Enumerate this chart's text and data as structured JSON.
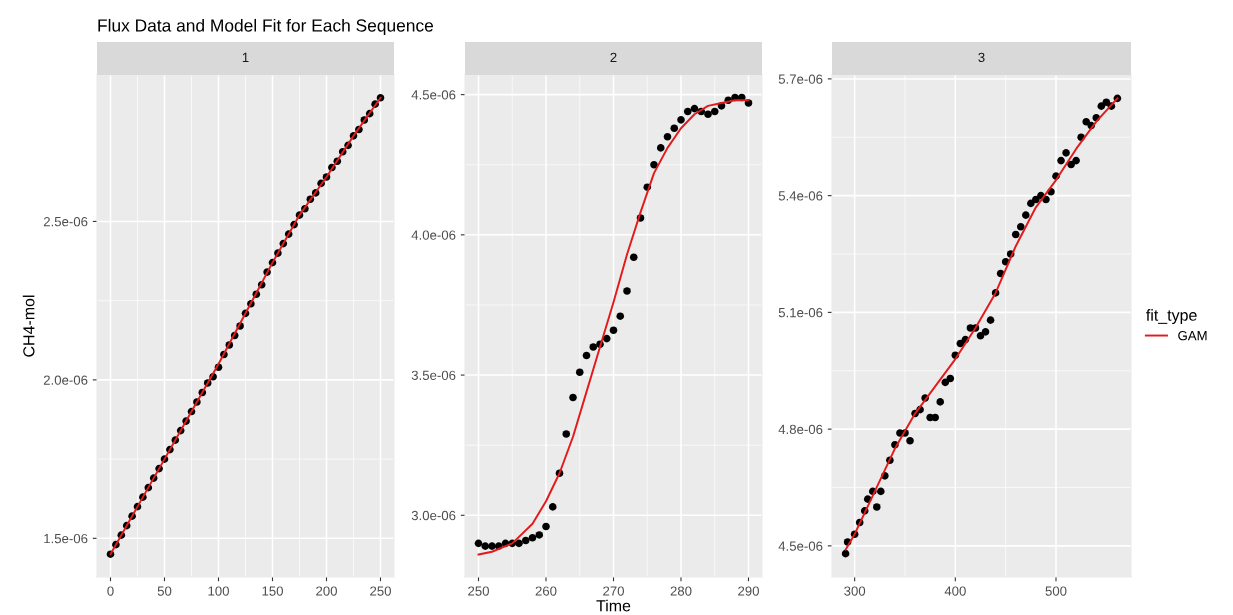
{
  "chart_data": [
    {
      "type": "scatter",
      "title": "Flux Data and Model Fit for Each Sequence",
      "subtitle": "1",
      "ylabel": "CH4-mol",
      "grid": true,
      "xlim": [
        -12.5,
        262.5
      ],
      "ylim": [
        1.378e-06,
        2.962e-06
      ],
      "xticks": [
        0,
        50,
        100,
        150,
        200,
        250
      ],
      "yticks": [
        {
          "value": 1.5e-06,
          "label": "1.5e-06"
        },
        {
          "value": 2e-06,
          "label": "2.0e-06"
        },
        {
          "value": 2.5e-06,
          "label": "2.5e-06"
        }
      ],
      "series": [
        {
          "marker": "circle",
          "color": "#000000",
          "x": [
            0,
            5,
            10,
            15,
            20,
            25,
            30,
            35,
            40,
            45,
            50,
            55,
            60,
            65,
            70,
            75,
            80,
            85,
            90,
            95,
            100,
            105,
            110,
            115,
            120,
            125,
            130,
            135,
            140,
            145,
            150,
            155,
            160,
            165,
            170,
            175,
            180,
            185,
            190,
            195,
            200,
            205,
            210,
            215,
            220,
            225,
            230,
            235,
            240,
            245,
            250
          ],
          "values": [
            1.45e-06,
            1.48e-06,
            1.51e-06,
            1.54e-06,
            1.57e-06,
            1.6e-06,
            1.63e-06,
            1.66e-06,
            1.69e-06,
            1.72e-06,
            1.75e-06,
            1.78e-06,
            1.81e-06,
            1.84e-06,
            1.87e-06,
            1.9e-06,
            1.93e-06,
            1.96e-06,
            1.99e-06,
            2.01e-06,
            2.04e-06,
            2.08e-06,
            2.11e-06,
            2.14e-06,
            2.17e-06,
            2.21e-06,
            2.24e-06,
            2.27e-06,
            2.3e-06,
            2.34e-06,
            2.37e-06,
            2.4e-06,
            2.43e-06,
            2.46e-06,
            2.49e-06,
            2.52e-06,
            2.54e-06,
            2.57e-06,
            2.59e-06,
            2.62e-06,
            2.64e-06,
            2.67e-06,
            2.69e-06,
            2.72e-06,
            2.74e-06,
            2.77e-06,
            2.79e-06,
            2.82e-06,
            2.84e-06,
            2.87e-06,
            2.89e-06
          ]
        },
        {
          "type": "line",
          "color": "#e31a1c",
          "x": [
            0,
            25,
            50,
            75,
            100,
            125,
            150,
            175,
            200,
            225,
            250
          ],
          "values": [
            1.45e-06,
            1.6e-06,
            1.75e-06,
            1.9e-06,
            2.05e-06,
            2.21e-06,
            2.37e-06,
            2.52e-06,
            2.64e-06,
            2.77e-06,
            2.89e-06
          ]
        }
      ]
    },
    {
      "type": "scatter",
      "subtitle": "2",
      "xlabel": "Time",
      "grid": true,
      "xlim": [
        248,
        292
      ],
      "ylim": [
        2.78e-06,
        4.57e-06
      ],
      "xticks": [
        250,
        260,
        270,
        280,
        290
      ],
      "yticks": [
        {
          "value": 3e-06,
          "label": "3.0e-06"
        },
        {
          "value": 3.5e-06,
          "label": "3.5e-06"
        },
        {
          "value": 4e-06,
          "label": "4.0e-06"
        },
        {
          "value": 4.5e-06,
          "label": "4.5e-06"
        }
      ],
      "series": [
        {
          "marker": "circle",
          "color": "#000000",
          "x": [
            250,
            251,
            252,
            253,
            254,
            255,
            256,
            257,
            258,
            259,
            260,
            261,
            262,
            263,
            264,
            265,
            266,
            267,
            268,
            269,
            270,
            271,
            272,
            273,
            274,
            275,
            276,
            277,
            278,
            279,
            280,
            281,
            282,
            283,
            284,
            285,
            286,
            287,
            288,
            289,
            290
          ],
          "values": [
            2.9e-06,
            2.89e-06,
            2.89e-06,
            2.89e-06,
            2.9e-06,
            2.9e-06,
            2.9e-06,
            2.91e-06,
            2.92e-06,
            2.93e-06,
            2.96e-06,
            3.03e-06,
            3.15e-06,
            3.29e-06,
            3.42e-06,
            3.51e-06,
            3.57e-06,
            3.6e-06,
            3.61e-06,
            3.63e-06,
            3.66e-06,
            3.71e-06,
            3.8e-06,
            3.92e-06,
            4.06e-06,
            4.17e-06,
            4.25e-06,
            4.31e-06,
            4.35e-06,
            4.38e-06,
            4.41e-06,
            4.44e-06,
            4.45e-06,
            4.44e-06,
            4.43e-06,
            4.44e-06,
            4.46e-06,
            4.48e-06,
            4.49e-06,
            4.49e-06,
            4.47e-06
          ]
        },
        {
          "type": "line",
          "color": "#e31a1c",
          "x": [
            250,
            252,
            255,
            258,
            260,
            262,
            264,
            266,
            268,
            270,
            272,
            274,
            276,
            278,
            280,
            282,
            284,
            286,
            288,
            290
          ],
          "values": [
            2.86e-06,
            2.87e-06,
            2.9e-06,
            2.97e-06,
            3.05e-06,
            3.15e-06,
            3.28e-06,
            3.44e-06,
            3.6e-06,
            3.76e-06,
            3.93e-06,
            4.08e-06,
            4.22e-06,
            4.31e-06,
            4.38e-06,
            4.43e-06,
            4.46e-06,
            4.47e-06,
            4.48e-06,
            4.48e-06
          ]
        }
      ]
    },
    {
      "type": "scatter",
      "subtitle": "3",
      "legend_title": "fit_type",
      "legend": "right",
      "grid": true,
      "xlim": [
        277.5,
        574.5
      ],
      "ylim": [
        4.42e-06,
        5.71e-06
      ],
      "xticks": [
        300,
        400,
        500
      ],
      "yticks": [
        {
          "value": 4.5e-06,
          "label": "4.5e-06"
        },
        {
          "value": 4.8e-06,
          "label": "4.8e-06"
        },
        {
          "value": 5.1e-06,
          "label": "5.1e-06"
        },
        {
          "value": 5.4e-06,
          "label": "5.4e-06"
        },
        {
          "value": 5.7e-06,
          "label": "5.7e-06"
        }
      ],
      "series": [
        {
          "marker": "circle",
          "color": "#000000",
          "x": [
            291,
            293,
            300,
            305,
            310,
            313,
            318,
            322,
            326,
            330,
            335,
            340,
            345,
            350,
            355,
            360,
            365,
            370,
            375,
            380,
            385,
            390,
            395,
            400,
            405,
            410,
            415,
            420,
            425,
            430,
            435,
            440,
            445,
            450,
            455,
            460,
            465,
            470,
            475,
            480,
            485,
            490,
            495,
            500,
            505,
            510,
            515,
            520,
            525,
            530,
            535,
            540,
            545,
            550,
            555,
            561
          ],
          "values": [
            4.48e-06,
            4.51e-06,
            4.53e-06,
            4.56e-06,
            4.59e-06,
            4.62e-06,
            4.64e-06,
            4.6e-06,
            4.64e-06,
            4.68e-06,
            4.72e-06,
            4.76e-06,
            4.79e-06,
            4.79e-06,
            4.77e-06,
            4.84e-06,
            4.85e-06,
            4.88e-06,
            4.83e-06,
            4.83e-06,
            4.87e-06,
            4.92e-06,
            4.93e-06,
            4.99e-06,
            5.02e-06,
            5.03e-06,
            5.06e-06,
            5.06e-06,
            5.04e-06,
            5.05e-06,
            5.08e-06,
            5.15e-06,
            5.2e-06,
            5.23e-06,
            5.25e-06,
            5.3e-06,
            5.32e-06,
            5.35e-06,
            5.38e-06,
            5.39e-06,
            5.4e-06,
            5.39e-06,
            5.41e-06,
            5.45e-06,
            5.49e-06,
            5.51e-06,
            5.48e-06,
            5.49e-06,
            5.55e-06,
            5.59e-06,
            5.58e-06,
            5.6e-06,
            5.63e-06,
            5.64e-06,
            5.63e-06,
            5.65e-06
          ]
        },
        {
          "type": "line",
          "name": "GAM",
          "color": "#e31a1c",
          "x": [
            291,
            300,
            320,
            340,
            360,
            380,
            400,
            420,
            440,
            460,
            480,
            500,
            520,
            540,
            561
          ],
          "values": [
            4.49e-06,
            4.53e-06,
            4.64e-06,
            4.75e-06,
            4.84e-06,
            4.91e-06,
            4.98e-06,
            5.06e-06,
            5.15e-06,
            5.27e-06,
            5.37e-06,
            5.44e-06,
            5.52e-06,
            5.59e-06,
            5.65e-06
          ]
        }
      ]
    }
  ]
}
